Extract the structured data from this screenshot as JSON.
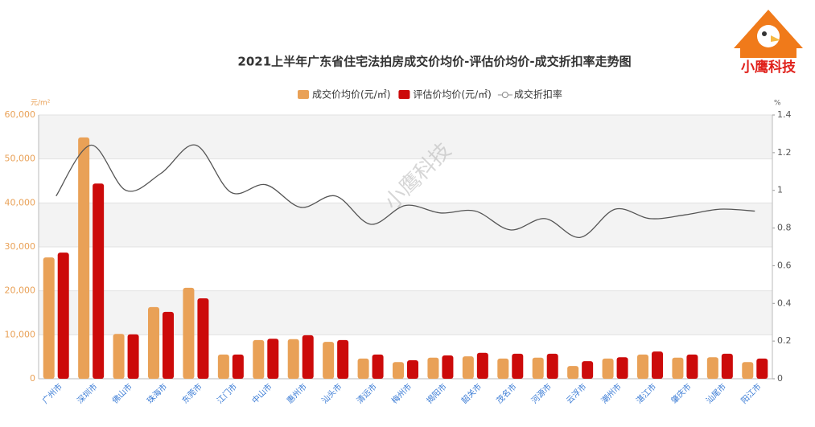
{
  "chart_data": {
    "type": "bar-line",
    "title": "2021上半年广东省住宅法拍房成交价均价-评估价均价-成交折扣率走势图",
    "y_unit": "元/m²",
    "y2_unit": "%",
    "watermark": "小鹰科技",
    "logo_text": "小鹰科技",
    "categories": [
      "广州市",
      "深圳市",
      "佛山市",
      "珠海市",
      "东莞市",
      "江门市",
      "中山市",
      "惠州市",
      "汕头市",
      "清远市",
      "梅州市",
      "揭阳市",
      "韶关市",
      "茂名市",
      "河源市",
      "云浮市",
      "潮州市",
      "湛江市",
      "肇庆市",
      "汕尾市",
      "阳江市"
    ],
    "series": [
      {
        "name": "成交价均价(元/㎡)",
        "type": "bar",
        "color": "#e9a157",
        "values": [
          27600,
          54900,
          10200,
          16300,
          20700,
          5500,
          8800,
          9000,
          8400,
          4600,
          3800,
          4800,
          5100,
          4600,
          4800,
          2900,
          4600,
          5500,
          4800,
          4900,
          3800
        ]
      },
      {
        "name": "评估价均价(元/㎡)",
        "type": "bar",
        "color": "#cc0a0a",
        "values": [
          28700,
          44400,
          10100,
          15200,
          18300,
          5500,
          9100,
          9900,
          8800,
          5500,
          4200,
          5300,
          5900,
          5700,
          5700,
          4000,
          4900,
          6200,
          5500,
          5700,
          4600
        ]
      },
      {
        "name": "成交折扣率",
        "type": "line",
        "axis": "y2",
        "color": "#555555",
        "values": [
          0.97,
          1.24,
          1.0,
          1.09,
          1.24,
          0.99,
          1.03,
          0.91,
          0.97,
          0.82,
          0.92,
          0.88,
          0.89,
          0.79,
          0.85,
          0.75,
          0.9,
          0.85,
          0.87,
          0.9,
          0.89
        ]
      }
    ],
    "ylim": [
      0,
      60000
    ],
    "yticks": [
      0,
      {
        "value": 10000,
        "label": "10,000"
      },
      {
        "value": 20000,
        "label": "20,000"
      },
      {
        "value": 30000,
        "label": "30,000"
      },
      {
        "value": 40000,
        "label": "40,000"
      },
      {
        "value": 50000,
        "label": "50,000"
      },
      {
        "value": 60000,
        "label": "60,000"
      }
    ],
    "y2lim": [
      0,
      1.4
    ],
    "y2ticks": [
      0,
      0.2,
      0.4,
      0.6,
      0.8,
      1,
      1.2,
      1.4
    ],
    "grid": true
  }
}
